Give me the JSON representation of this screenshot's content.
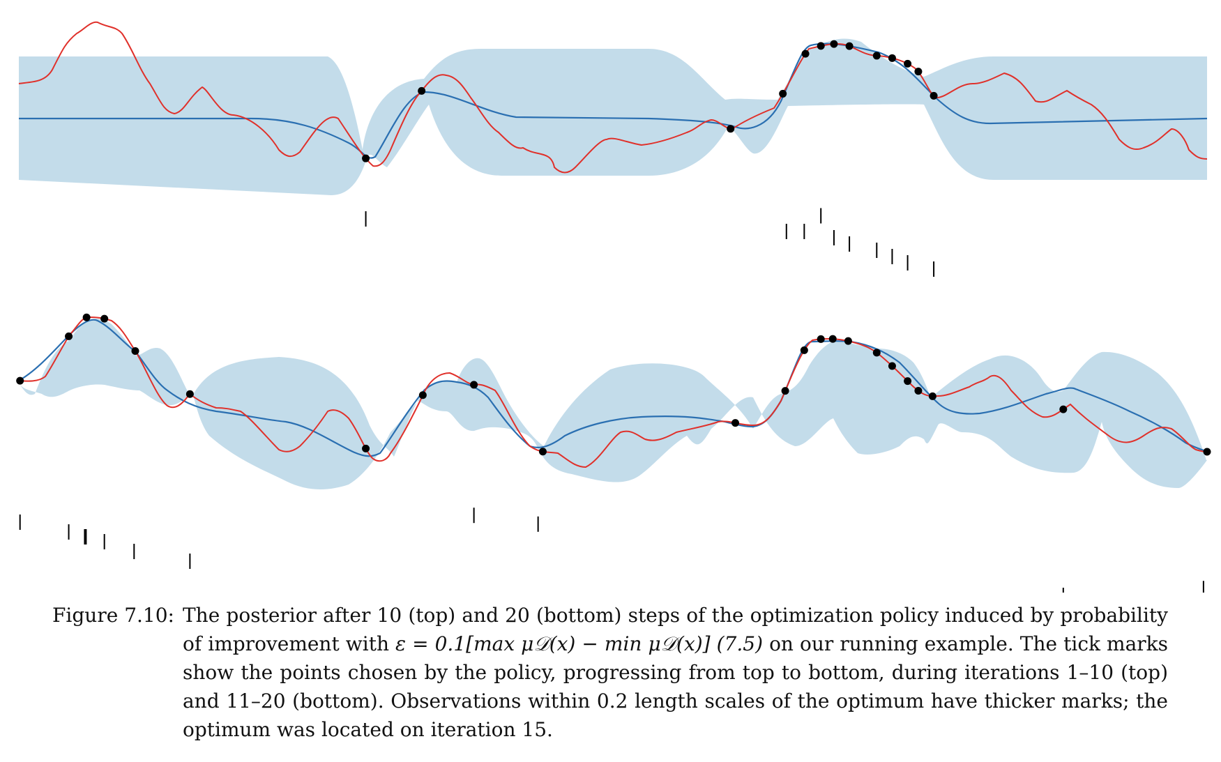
{
  "colors": {
    "band": "#c3dcea",
    "mean": "#2a6fb1",
    "objective": "#e0302a",
    "point": "#000000"
  },
  "figure": {
    "label": "Figure 7.10:",
    "caption_part1": "The posterior after 10 (top) and 20 (bottom) steps of the optimization policy induced by probability of improvement with ",
    "caption_formula": "ε = 0.1[max μ𝒟(x) − min μ𝒟(x)] (7.5)",
    "caption_part2": " on our running example. The tick marks show the points chosen by the policy, progressing from top to bottom, during iterations 1–10 (top) and 11–20 (bottom). Observations within 0.2 length scales of the optimum have thicker marks; the optimum was located on iteration 15."
  },
  "panels": [
    {
      "name": "top",
      "iterations": "1–10",
      "observations_x": [
        0.292,
        0.339,
        0.599,
        0.643,
        0.662,
        0.675,
        0.686,
        0.699,
        0.722,
        0.735,
        0.748,
        0.757,
        0.77
      ],
      "policy_picks": [
        {
          "x": 0.292,
          "step": 9
        },
        {
          "x": 0.646,
          "step": 7
        },
        {
          "x": 0.661,
          "step": 7
        },
        {
          "x": 0.675,
          "step": 9.5
        },
        {
          "x": 0.686,
          "step": 6
        },
        {
          "x": 0.699,
          "step": 5
        },
        {
          "x": 0.722,
          "step": 4
        },
        {
          "x": 0.735,
          "step": 3
        },
        {
          "x": 0.748,
          "step": 2
        },
        {
          "x": 0.77,
          "step": 1
        }
      ]
    },
    {
      "name": "bottom",
      "iterations": "11–20",
      "observations_x": [
        0.001,
        0.042,
        0.057,
        0.072,
        0.098,
        0.144,
        0.292,
        0.34,
        0.383,
        0.441,
        0.603,
        0.645,
        0.661,
        0.675,
        0.685,
        0.698,
        0.722,
        0.735,
        0.748,
        0.757,
        0.769,
        0.879,
        1.0
      ],
      "policy_picks": [
        {
          "x": 0.001,
          "step": 1,
          "thick": false
        },
        {
          "x": 0.042,
          "step": 2,
          "thick": false
        },
        {
          "x": 0.056,
          "step": 2.5,
          "thick": true
        },
        {
          "x": 0.072,
          "step": 3,
          "thick": false
        },
        {
          "x": 0.097,
          "step": 4,
          "thick": false
        },
        {
          "x": 0.144,
          "step": 5,
          "thick": false
        },
        {
          "x": 0.383,
          "step": 0.3,
          "thick": false
        },
        {
          "x": 0.437,
          "step": 1.2,
          "thick": false
        },
        {
          "x": 0.879,
          "step": 8.5,
          "thick": false
        },
        {
          "x": 0.997,
          "step": 7.8,
          "thick": false
        }
      ]
    }
  ]
}
